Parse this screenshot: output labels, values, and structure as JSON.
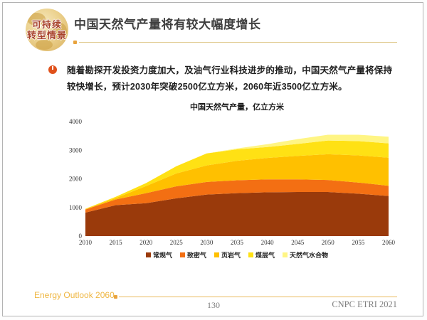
{
  "logo": {
    "line1": "可持续",
    "line2": "转型情景"
  },
  "header": {
    "title": "中国天然气产量将有较大幅度增长"
  },
  "bullet": {
    "text": "随着勘探开发投资力度加大，及油气行业科技进步的推动，中国天然气产量将保持较快增长，预计2030年突破2500亿立方米，2060年近3500亿立方米。"
  },
  "chart_data": {
    "type": "area",
    "stacked": true,
    "title": "中国天然气产量，亿立方米",
    "categories": [
      2010,
      2015,
      2020,
      2025,
      2030,
      2035,
      2040,
      2045,
      2050,
      2055,
      2060
    ],
    "series": [
      {
        "name": "常规气",
        "color": "#9a3a0b",
        "values": [
          820,
          1080,
          1150,
          1320,
          1450,
          1500,
          1530,
          1540,
          1540,
          1480,
          1400
        ]
      },
      {
        "name": "致密气",
        "color": "#f36f13",
        "values": [
          110,
          200,
          350,
          420,
          440,
          450,
          450,
          440,
          420,
          390,
          360
        ]
      },
      {
        "name": "页岩气",
        "color": "#ffc000",
        "values": [
          10,
          50,
          250,
          450,
          580,
          680,
          750,
          820,
          900,
          950,
          980
        ]
      },
      {
        "name": "煤层气",
        "color": "#ffe114",
        "values": [
          15,
          45,
          100,
          250,
          420,
          400,
          380,
          420,
          480,
          500,
          500
        ]
      },
      {
        "name": "天然气水合物",
        "color": "#fff584",
        "values": [
          0,
          0,
          0,
          0,
          0,
          30,
          100,
          170,
          200,
          220,
          230
        ]
      }
    ],
    "ylim": [
      0,
      4000
    ],
    "yticks": [
      0,
      1000,
      2000,
      3000,
      4000
    ],
    "grid": false,
    "legend_position": "bottom"
  },
  "footer": {
    "left": "Energy Outlook 2060",
    "page": "130",
    "right": "CNPC ETRI 2021"
  }
}
